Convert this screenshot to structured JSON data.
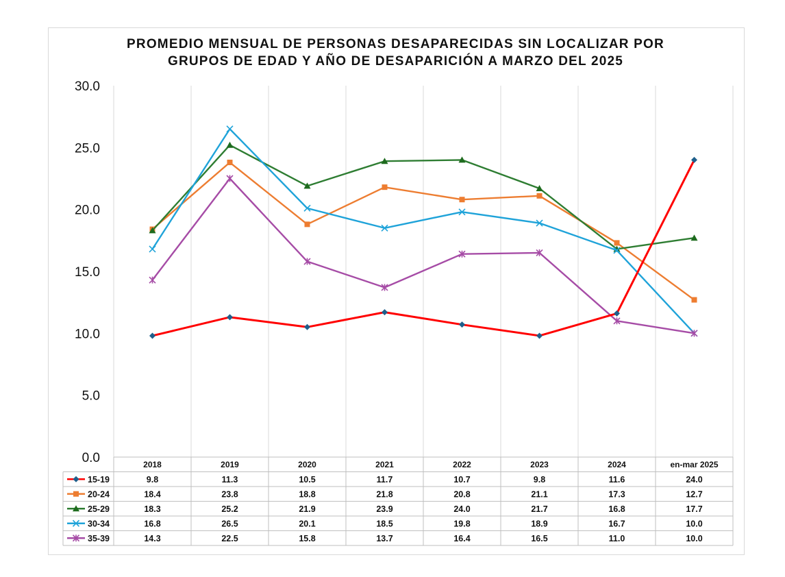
{
  "chart_data": {
    "type": "line",
    "title": [
      "PROMEDIO MENSUAL DE PERSONAS DESAPARECIDAS SIN LOCALIZAR POR",
      "GRUPOS DE EDAD Y AÑO DE DESAPARICIÓN A MARZO DEL 2025"
    ],
    "categories": [
      "2018",
      "2019",
      "2020",
      "2021",
      "2022",
      "2023",
      "2024",
      "en-mar 2025"
    ],
    "ylim": [
      0,
      30
    ],
    "yticks": [
      "0.0",
      "5.0",
      "10.0",
      "15.0",
      "20.0",
      "25.0",
      "30.0"
    ],
    "grid": "vertical",
    "legend": "data-table",
    "series": [
      {
        "name": "15-19",
        "color": "#ff0000",
        "marker_color": "#1f5f8b",
        "marker": "diamond",
        "values": [
          9.8,
          11.3,
          10.5,
          11.7,
          10.7,
          9.8,
          11.6,
          24.0
        ]
      },
      {
        "name": "20-24",
        "color": "#ed7d31",
        "marker_color": "#ed7d31",
        "marker": "square",
        "values": [
          18.4,
          23.8,
          18.8,
          21.8,
          20.8,
          21.1,
          17.3,
          12.7
        ]
      },
      {
        "name": "25-29",
        "color": "#2e7d32",
        "marker_color": "#1e6b1e",
        "marker": "triangle",
        "values": [
          18.3,
          25.2,
          21.9,
          23.9,
          24.0,
          21.7,
          16.8,
          17.7
        ]
      },
      {
        "name": "30-34",
        "color": "#1fa3d9",
        "marker_color": "#1fa3d9",
        "marker": "x",
        "values": [
          16.8,
          26.5,
          20.1,
          18.5,
          19.8,
          18.9,
          16.7,
          10.0
        ]
      },
      {
        "name": "35-39",
        "color": "#a64ca6",
        "marker_color": "#a64ca6",
        "marker": "star",
        "values": [
          14.3,
          22.5,
          15.8,
          13.7,
          16.4,
          16.5,
          11.0,
          10.0
        ]
      }
    ],
    "table_values": [
      [
        "9.8",
        "11.3",
        "10.5",
        "11.7",
        "10.7",
        "9.8",
        "11.6",
        "24.0"
      ],
      [
        "18.4",
        "23.8",
        "18.8",
        "21.8",
        "20.8",
        "21.1",
        "17.3",
        "12.7"
      ],
      [
        "18.3",
        "25.2",
        "21.9",
        "23.9",
        "24.0",
        "21.7",
        "16.8",
        "17.7"
      ],
      [
        "16.8",
        "26.5",
        "20.1",
        "18.5",
        "19.8",
        "18.9",
        "16.7",
        "10.0"
      ],
      [
        "14.3",
        "22.5",
        "15.8",
        "13.7",
        "16.4",
        "16.5",
        "11.0",
        "10.0"
      ]
    ]
  }
}
